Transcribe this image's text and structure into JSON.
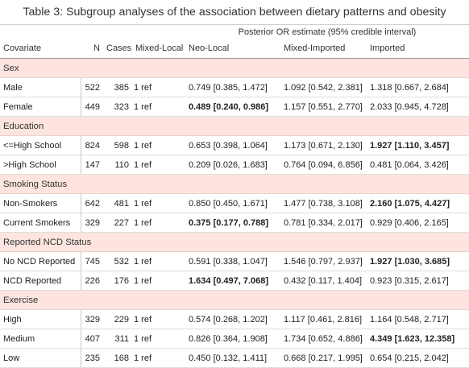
{
  "caption": "Table 3: Subgroup analyses of the association between dietary patterns and obesity",
  "spanner": "Posterior OR estimate (95% credible interval)",
  "columns": {
    "covariate": "Covariate",
    "n": "N",
    "cases": "Cases",
    "mixed_local": "Mixed-Local",
    "neo_local": "Neo-Local",
    "mixed_imported": "Mixed-Imported",
    "imported": "Imported"
  },
  "groups": [
    {
      "label": "Sex",
      "rows": [
        {
          "covariate": "Male",
          "n": "522",
          "cases": "385",
          "ml": "1 ref",
          "nl": "0.749 [0.385, 1.472]",
          "mi": "1.092 [0.542, 2.381]",
          "im": "1.318 [0.667, 2.684]",
          "bold": []
        },
        {
          "covariate": "Female",
          "n": "449",
          "cases": "323",
          "ml": "1 ref",
          "nl": "0.489 [0.240, 0.986]",
          "mi": "1.157 [0.551, 2.770]",
          "im": "2.033 [0.945, 4.728]",
          "bold": [
            "nl"
          ]
        }
      ]
    },
    {
      "label": "Education",
      "rows": [
        {
          "covariate": "<=High School",
          "n": "824",
          "cases": "598",
          "ml": "1 ref",
          "nl": "0.653 [0.398, 1.064]",
          "mi": "1.173 [0.671, 2.130]",
          "im": "1.927 [1.110, 3.457]",
          "bold": [
            "im"
          ]
        },
        {
          "covariate": ">High School",
          "n": "147",
          "cases": "110",
          "ml": "1 ref",
          "nl": "0.209 [0.026, 1.683]",
          "mi": "0.764 [0.094, 6.856]",
          "im": "0.481 [0.064, 3.426]",
          "bold": []
        }
      ]
    },
    {
      "label": "Smoking Status",
      "rows": [
        {
          "covariate": "Non-Smokers",
          "n": "642",
          "cases": "481",
          "ml": "1 ref",
          "nl": "0.850 [0.450, 1.671]",
          "mi": "1.477 [0.738, 3.108]",
          "im": "2.160 [1.075, 4.427]",
          "bold": [
            "im"
          ]
        },
        {
          "covariate": "Current Smokers",
          "n": "329",
          "cases": "227",
          "ml": "1 ref",
          "nl": "0.375 [0.177, 0.788]",
          "mi": "0.781 [0.334, 2.017]",
          "im": "0.929 [0.406, 2.165]",
          "bold": [
            "nl"
          ]
        }
      ]
    },
    {
      "label": "Reported NCD Status",
      "rows": [
        {
          "covariate": "No NCD Reported",
          "n": "745",
          "cases": "532",
          "ml": "1 ref",
          "nl": "0.591 [0.338, 1.047]",
          "mi": "1.546 [0.797, 2.937]",
          "im": "1.927 [1.030, 3.685]",
          "bold": [
            "im"
          ]
        },
        {
          "covariate": "NCD Reported",
          "n": "226",
          "cases": "176",
          "ml": "1 ref",
          "nl": "1.634 [0.497, 7.068]",
          "mi": "0.432 [0.117, 1.404]",
          "im": "0.923 [0.315, 2.617]",
          "bold": [
            "nl"
          ]
        }
      ]
    },
    {
      "label": "Exercise",
      "rows": [
        {
          "covariate": "High",
          "n": "329",
          "cases": "229",
          "ml": "1 ref",
          "nl": "0.574 [0.268, 1.202]",
          "mi": "1.117 [0.461, 2.816]",
          "im": "1.164 [0.548, 2.717]",
          "bold": []
        },
        {
          "covariate": "Medium",
          "n": "407",
          "cases": "311",
          "ml": "1 ref",
          "nl": "0.826 [0.364, 1.908]",
          "mi": "1.734 [0.652, 4.886]",
          "im": "4.349 [1.623, 12.358]",
          "bold": [
            "im"
          ]
        },
        {
          "covariate": "Low",
          "n": "235",
          "cases": "168",
          "ml": "1 ref",
          "nl": "0.450 [0.132, 1.411]",
          "mi": "0.668 [0.217, 1.995]",
          "im": "0.654 [0.215, 2.042]",
          "bold": []
        }
      ]
    }
  ]
}
